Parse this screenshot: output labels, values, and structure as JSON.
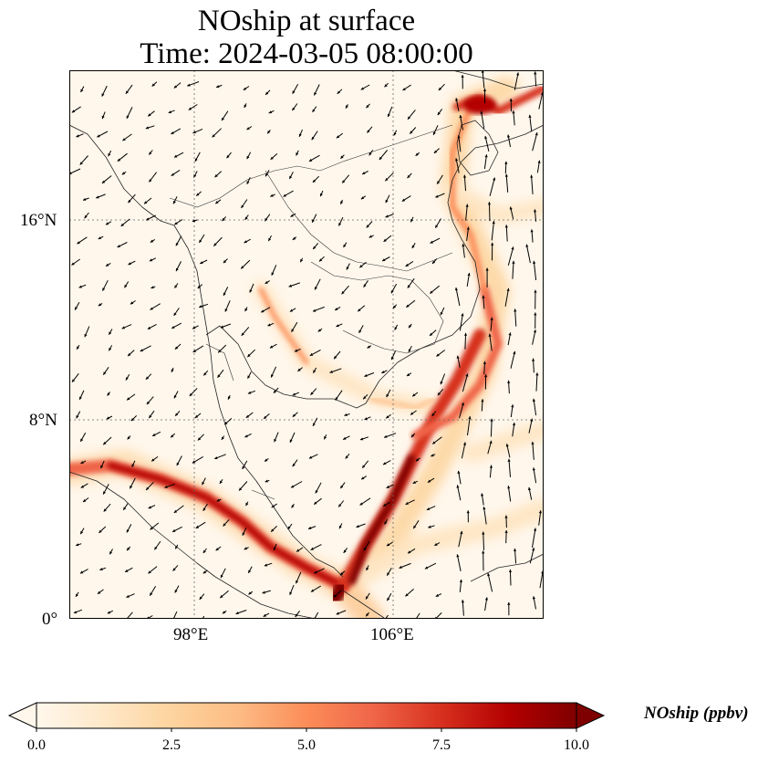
{
  "title": {
    "line1": "NOship at surface",
    "line2": "Time: 2024-03-05 08:00:00"
  },
  "map": {
    "projection": "PlateCarree",
    "lon_range_deg": [
      93,
      112
    ],
    "lat_range_deg": [
      0,
      22
    ],
    "gridlines": "dotted",
    "features": [
      "coastlines",
      "country borders",
      "wind vectors"
    ]
  },
  "axes": {
    "lat_ticks": [
      "16°N",
      "8°N",
      "0°"
    ],
    "lon_ticks": [
      "98°E",
      "106°E"
    ]
  },
  "colorbar": {
    "label": "NOship (ppbv)",
    "colormap": "OrRd",
    "extend": "both",
    "ticks": [
      "0.0",
      "2.5",
      "5.0",
      "7.5",
      "10.0"
    ],
    "min": 0,
    "max": 10
  },
  "colors": {
    "low": "#fff7ec",
    "mid": "#fc8d59",
    "high": "#7f0000"
  }
}
